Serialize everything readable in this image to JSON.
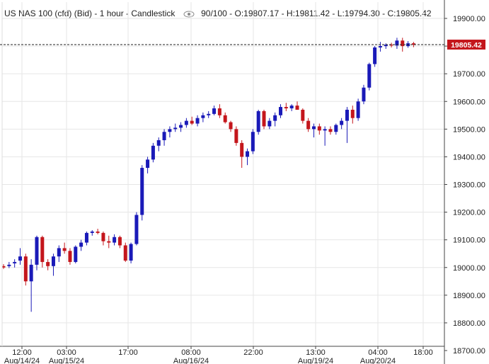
{
  "header": {
    "instrument": "US NAS 100 (cfd) (Bid) - 1 hour - Candlestick",
    "count": "90/100",
    "open": "O:19807.17",
    "high": "H:19811.42",
    "low": "L:19794.30",
    "close": "C:19805.42"
  },
  "colors": {
    "up": "#1a1ab8",
    "down": "#c4161c",
    "grid": "#e6e6e6",
    "price_tag": "#c4161c"
  },
  "chart_data": {
    "type": "candlestick",
    "ylim": [
      18700,
      19950
    ],
    "yticks": [
      "19900.00",
      "19800.00",
      "19700.00",
      "19600.00",
      "19500.00",
      "19400.00",
      "19300.00",
      "19200.00",
      "19100.00",
      "19000.00",
      "18900.00",
      "18800.00",
      "18700.00"
    ],
    "xticks": [
      {
        "time": "12:00",
        "date": "Aug/14/24"
      },
      {
        "time": "03:00",
        "date": "Aug/15/24"
      },
      {
        "time": "17:00",
        "date": ""
      },
      {
        "time": "08:00",
        "date": "Aug/16/24"
      },
      {
        "time": "22:00",
        "date": ""
      },
      {
        "time": "13:00",
        "date": "Aug/19/24"
      },
      {
        "time": "04:00",
        "date": "Aug/20/24"
      },
      {
        "time": "18:00",
        "date": ""
      }
    ],
    "last_price": "19805.42",
    "candles": [
      [
        19005,
        19012,
        18995,
        19000
      ],
      [
        19005,
        19020,
        18998,
        19010
      ],
      [
        19015,
        19030,
        19000,
        19020
      ],
      [
        19025,
        19070,
        19010,
        19040
      ],
      [
        19040,
        19050,
        18935,
        18950
      ],
      [
        18950,
        19030,
        18840,
        19010
      ],
      [
        19010,
        19115,
        18990,
        19110
      ],
      [
        19110,
        19115,
        19000,
        19020
      ],
      [
        19020,
        19030,
        18990,
        19005
      ],
      [
        19005,
        19050,
        18970,
        19040
      ],
      [
        19040,
        19080,
        19020,
        19070
      ],
      [
        19070,
        19090,
        19050,
        19060
      ],
      [
        19060,
        19070,
        19010,
        19020
      ],
      [
        19020,
        19080,
        19015,
        19075
      ],
      [
        19075,
        19100,
        19060,
        19090
      ],
      [
        19090,
        19130,
        19080,
        19125
      ],
      [
        19125,
        19135,
        19115,
        19130
      ],
      [
        19130,
        19140,
        19120,
        19125
      ],
      [
        19125,
        19130,
        19080,
        19095
      ],
      [
        19095,
        19115,
        19070,
        19090
      ],
      [
        19090,
        19120,
        19080,
        19110
      ],
      [
        19110,
        19115,
        19070,
        19080
      ],
      [
        19080,
        19090,
        19020,
        19025
      ],
      [
        19025,
        19090,
        19015,
        19085
      ],
      [
        19085,
        19200,
        19080,
        19190
      ],
      [
        19190,
        19370,
        19170,
        19360
      ],
      [
        19360,
        19400,
        19340,
        19390
      ],
      [
        19390,
        19450,
        19380,
        19440
      ],
      [
        19440,
        19470,
        19420,
        19460
      ],
      [
        19460,
        19500,
        19440,
        19490
      ],
      [
        19490,
        19510,
        19470,
        19500
      ],
      [
        19500,
        19520,
        19490,
        19505
      ],
      [
        19505,
        19525,
        19490,
        19515
      ],
      [
        19515,
        19540,
        19505,
        19530
      ],
      [
        19530,
        19545,
        19515,
        19520
      ],
      [
        19520,
        19550,
        19510,
        19540
      ],
      [
        19540,
        19560,
        19525,
        19550
      ],
      [
        19550,
        19565,
        19540,
        19555
      ],
      [
        19555,
        19585,
        19550,
        19575
      ],
      [
        19575,
        19590,
        19540,
        19550
      ],
      [
        19550,
        19560,
        19520,
        19525
      ],
      [
        19525,
        19530,
        19490,
        19500
      ],
      [
        19500,
        19510,
        19440,
        19450
      ],
      [
        19450,
        19460,
        19360,
        19400
      ],
      [
        19400,
        19430,
        19370,
        19420
      ],
      [
        19420,
        19500,
        19410,
        19490
      ],
      [
        19490,
        19570,
        19480,
        19565
      ],
      [
        19565,
        19570,
        19500,
        19510
      ],
      [
        19510,
        19540,
        19500,
        19530
      ],
      [
        19530,
        19560,
        19510,
        19550
      ],
      [
        19550,
        19590,
        19540,
        19580
      ],
      [
        19580,
        19595,
        19565,
        19575
      ],
      [
        19575,
        19590,
        19565,
        19585
      ],
      [
        19585,
        19600,
        19570,
        19570
      ],
      [
        19570,
        19575,
        19520,
        19530
      ],
      [
        19530,
        19540,
        19490,
        19500
      ],
      [
        19500,
        19520,
        19470,
        19510
      ],
      [
        19510,
        19520,
        19480,
        19495
      ],
      [
        19495,
        19510,
        19440,
        19500
      ],
      [
        19500,
        19510,
        19480,
        19490
      ],
      [
        19490,
        19520,
        19480,
        19515
      ],
      [
        19515,
        19540,
        19500,
        19530
      ],
      [
        19530,
        19580,
        19450,
        19570
      ],
      [
        19570,
        19585,
        19520,
        19540
      ],
      [
        19540,
        19610,
        19530,
        19600
      ],
      [
        19600,
        19660,
        19590,
        19650
      ],
      [
        19650,
        19740,
        19640,
        19735
      ],
      [
        19735,
        19800,
        19725,
        19795
      ],
      [
        19795,
        19815,
        19780,
        19800
      ],
      [
        19800,
        19810,
        19790,
        19805
      ],
      [
        19805,
        19812,
        19795,
        19802
      ],
      [
        19802,
        19830,
        19790,
        19820
      ],
      [
        19820,
        19830,
        19780,
        19800
      ],
      [
        19800,
        19818,
        19794,
        19810
      ],
      [
        19810,
        19815,
        19796,
        19805
      ]
    ]
  }
}
